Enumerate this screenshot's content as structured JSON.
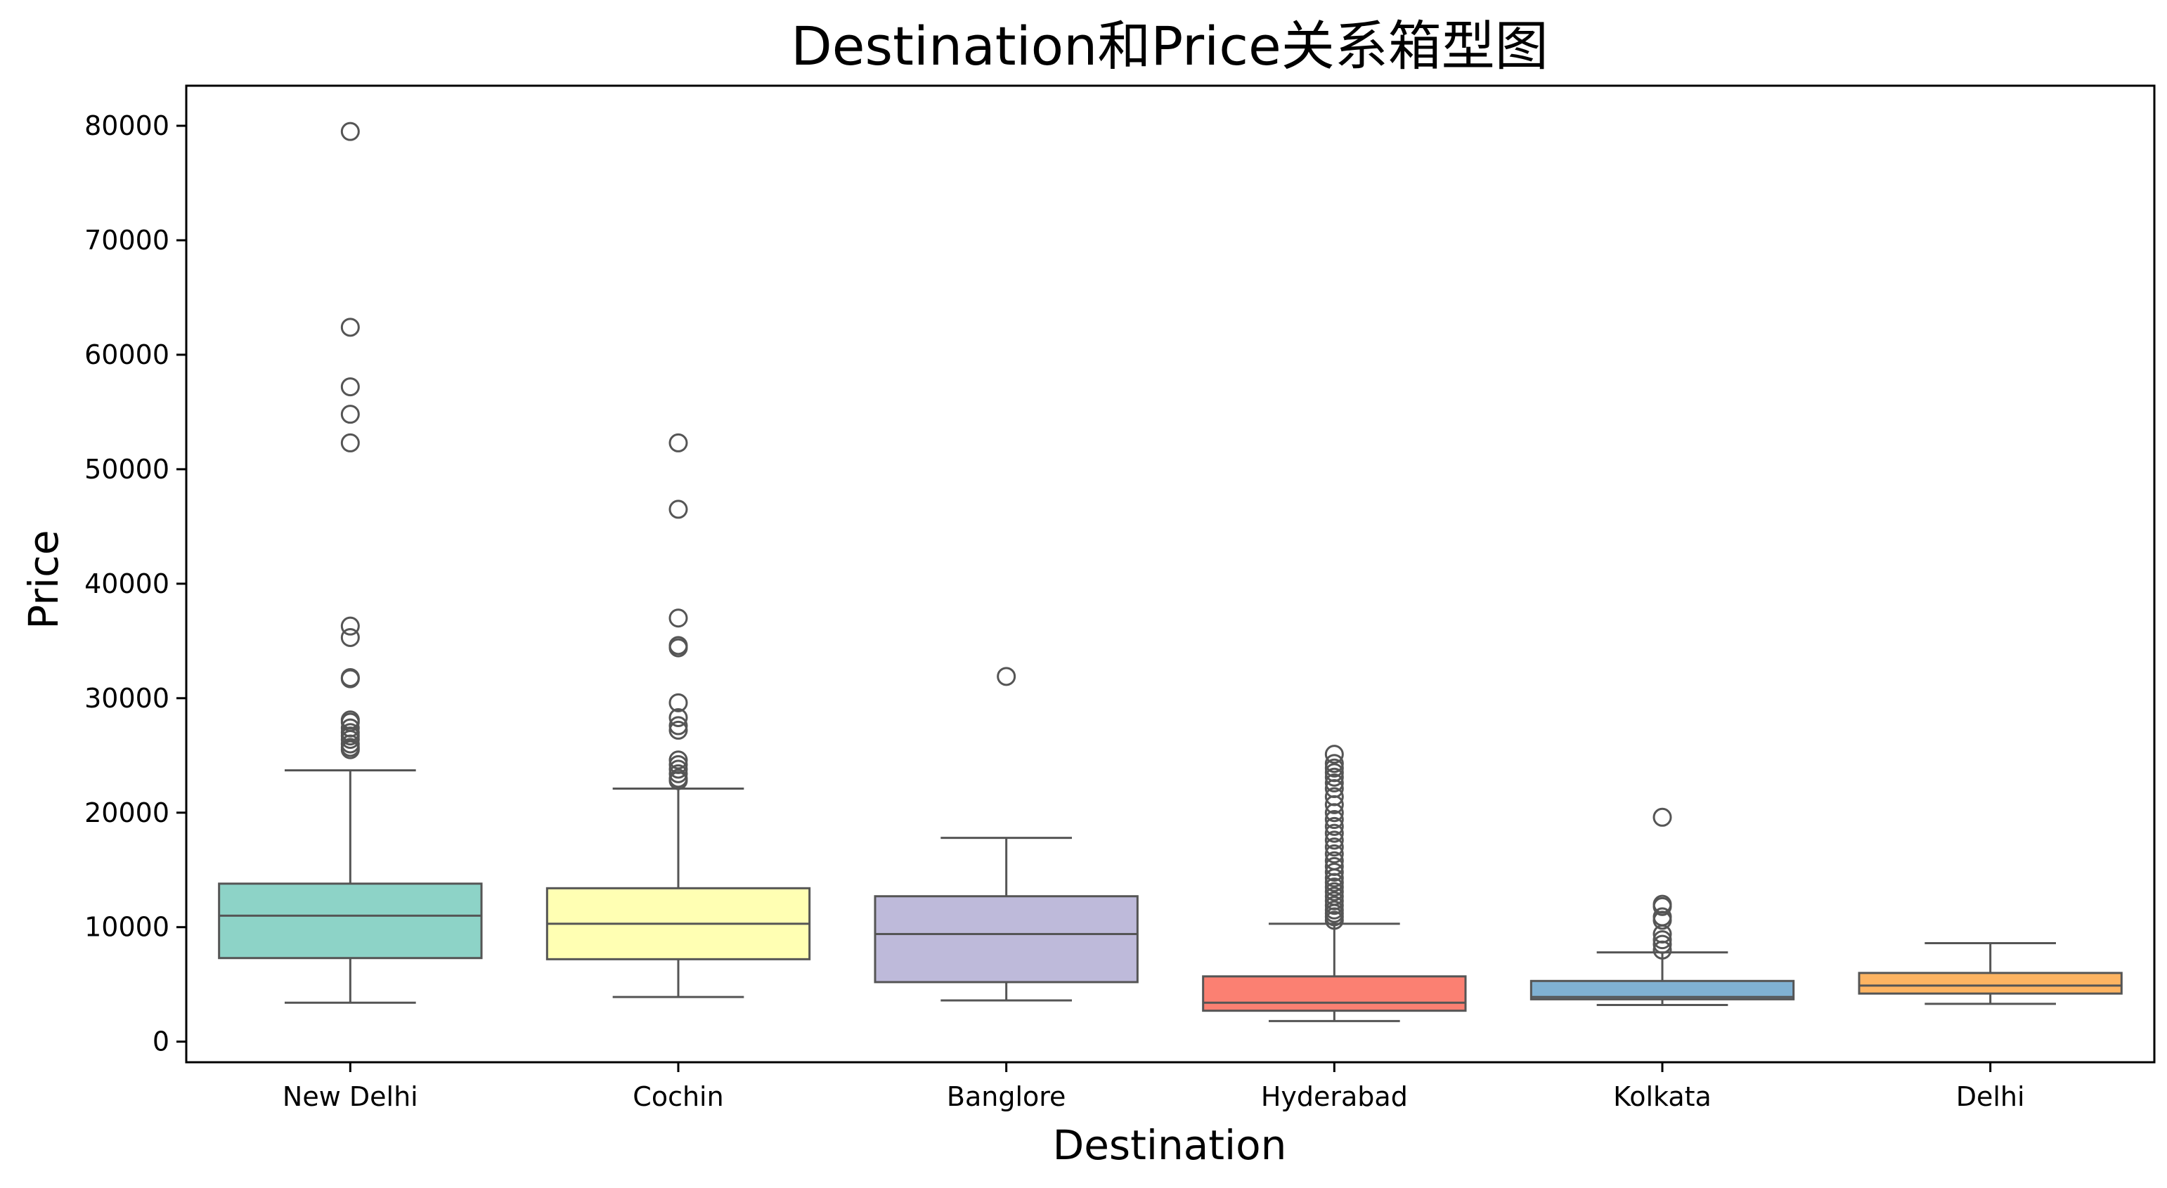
{
  "chart_data": {
    "type": "box",
    "title": "Destination和Price关系箱型图",
    "xlabel": "Destination",
    "ylabel": "Price",
    "ylim": [
      -1800,
      83500
    ],
    "yticks": [
      0,
      10000,
      20000,
      30000,
      40000,
      50000,
      60000,
      70000,
      80000
    ],
    "grid": false,
    "categories": [
      "New Delhi",
      "Cochin",
      "Banglore",
      "Hyderabad",
      "Kolkata",
      "Delhi"
    ],
    "boxes": [
      {
        "category": "New Delhi",
        "color": "#8dd3c7",
        "whisker_low": 3400,
        "q1": 7300,
        "median": 11000,
        "q3": 13800,
        "whisker_high": 23700,
        "outliers": [
          79500,
          62400,
          57200,
          54800,
          52300,
          36300,
          35300,
          31800,
          31700,
          28100,
          27900,
          27400,
          27000,
          26700,
          26400,
          26000,
          25700,
          25500
        ]
      },
      {
        "category": "Cochin",
        "color": "#ffffb3",
        "whisker_low": 3900,
        "q1": 7200,
        "median": 10300,
        "q3": 13400,
        "whisker_high": 22100,
        "outliers": [
          52300,
          46500,
          37000,
          34600,
          34400,
          29600,
          28300,
          27600,
          27200,
          24600,
          24200,
          23800,
          23400,
          23000,
          22800
        ]
      },
      {
        "category": "Banglore",
        "color": "#bebada",
        "whisker_low": 3600,
        "q1": 5200,
        "median": 9400,
        "q3": 12700,
        "whisker_high": 17800,
        "outliers": [
          31900
        ]
      },
      {
        "category": "Hyderabad",
        "color": "#fb8072",
        "whisker_low": 1800,
        "q1": 2700,
        "median": 3400,
        "q3": 5700,
        "whisker_high": 10300,
        "outliers": [
          25100,
          24300,
          23900,
          23500,
          23100,
          22600,
          22100,
          21400,
          20700,
          20000,
          19400,
          18800,
          18200,
          17600,
          17000,
          16400,
          15800,
          15300,
          14800,
          14300,
          13900,
          13500,
          13100,
          12700,
          12300,
          11900,
          11500,
          11200,
          10900,
          10600
        ]
      },
      {
        "category": "Kolkata",
        "color": "#80b1d3",
        "whisker_low": 3200,
        "q1": 3700,
        "median": 3900,
        "q3": 5300,
        "whisker_high": 7800,
        "outliers": [
          19600,
          12000,
          11800,
          10900,
          10600,
          9400,
          8900,
          8500,
          8000
        ]
      },
      {
        "category": "Delhi",
        "color": "#fdb462",
        "whisker_low": 3300,
        "q1": 4200,
        "median": 4900,
        "q3": 6000,
        "whisker_high": 8600,
        "outliers": []
      }
    ]
  }
}
